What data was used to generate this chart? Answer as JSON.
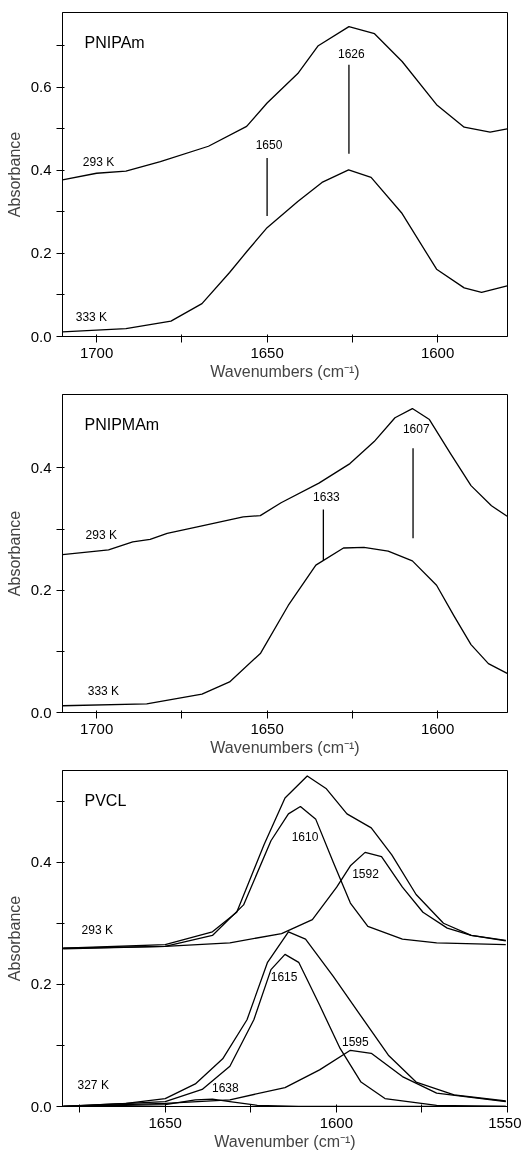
{
  "chart_data": [
    {
      "type": "line",
      "title": "PNIPAm",
      "xlabel": "Wavenumbers (cm⁻¹)",
      "ylabel": "Absorbance",
      "xlim": [
        1710,
        1579.5
      ],
      "ylim": [
        0,
        0.78
      ],
      "xticks": [
        1700,
        {
          "value": 1675,
          "label": null
        },
        1650,
        {
          "value": 1625,
          "label": null
        },
        1600
      ],
      "yticks": [
        {
          "value": 0,
          "label": "0.0"
        },
        {
          "value": 0.1,
          "label": null
        },
        {
          "value": 0.2,
          "label": "0.2"
        },
        {
          "value": 0.3,
          "label": null
        },
        {
          "value": 0.4,
          "label": "0.4"
        },
        {
          "value": 0.5,
          "label": null
        },
        {
          "value": 0.6,
          "label": "0.6"
        },
        {
          "value": 0.7,
          "label": null
        }
      ],
      "series": [
        {
          "color": "#000000",
          "x": [
            1710,
            1700,
            1691.4,
            1681.3,
            1667.2,
            1656,
            1650,
            1641,
            1635,
            1626,
            1618.5,
            1610.4,
            1600.3,
            1592.2,
            1584.6,
            1579.6
          ],
          "values": [
            0.377,
            0.393,
            0.398,
            0.421,
            0.458,
            0.506,
            0.562,
            0.633,
            0.7,
            0.746,
            0.729,
            0.662,
            0.558,
            0.504,
            0.492,
            0.5
          ]
        },
        {
          "color": "#000000",
          "x": [
            1710,
            1691.4,
            1678.2,
            1669.1,
            1661,
            1656,
            1650,
            1641,
            1633.9,
            1626.1,
            1619.5,
            1610.4,
            1600.3,
            1592.2,
            1587.1,
            1579.6
          ],
          "values": [
            0.011,
            0.019,
            0.037,
            0.079,
            0.154,
            0.204,
            0.262,
            0.325,
            0.371,
            0.401,
            0.383,
            0.296,
            0.162,
            0.117,
            0.106,
            0.122
          ]
        },
        {
          "color": "#000000",
          "x": [
            1650,
            1650
          ],
          "values": [
            0.29,
            0.43
          ]
        },
        {
          "color": "#000000",
          "x": [
            1626,
            1626
          ],
          "values": [
            0.44,
            0.654
          ]
        }
      ],
      "annotations": [
        "293 K",
        "333 K",
        "1650",
        "1626"
      ]
    },
    {
      "type": "line",
      "title": "PNIPMAm",
      "xlabel": "Wavenumbers (cm⁻¹)",
      "ylabel": "Absorbance",
      "xlim": [
        1710,
        1579.5
      ],
      "ylim": [
        0,
        0.52
      ],
      "xticks": [
        1700,
        {
          "value": 1675,
          "label": null
        },
        1650,
        {
          "value": 1625,
          "label": null
        },
        1600
      ],
      "yticks": [
        {
          "value": 0,
          "label": "0.0"
        },
        {
          "value": 0.1,
          "label": null
        },
        {
          "value": 0.2,
          "label": "0.2"
        },
        {
          "value": 0.3,
          "label": null
        },
        {
          "value": 0.4,
          "label": "0.4"
        }
      ],
      "series": [
        {
          "color": "#000000",
          "x": [
            1710,
            1700,
            1696.5,
            1689.4,
            1684.3,
            1679.3,
            1669.1,
            1657,
            1652,
            1645.9,
            1634.8,
            1625.7,
            1618.6,
            1612.5,
            1607.4,
            1602.4,
            1596.3,
            1590.2,
            1584.2,
            1579.6
          ],
          "values": [
            0.258,
            0.264,
            0.266,
            0.279,
            0.283,
            0.293,
            0.305,
            0.32,
            0.322,
            0.343,
            0.375,
            0.407,
            0.443,
            0.482,
            0.497,
            0.479,
            0.424,
            0.371,
            0.338,
            0.321
          ]
        },
        {
          "color": "#000000",
          "x": [
            1710,
            1685.3,
            1669.1,
            1661,
            1651.9,
            1643.8,
            1635.7,
            1627.6,
            1621.6,
            1614.5,
            1607.4,
            1600.3,
            1595.2,
            1590.2,
            1585.1,
            1579.6
          ],
          "values": [
            0.011,
            0.014,
            0.03,
            0.05,
            0.097,
            0.175,
            0.241,
            0.269,
            0.27,
            0.264,
            0.248,
            0.208,
            0.158,
            0.111,
            0.08,
            0.064
          ]
        },
        {
          "color": "#000000",
          "x": [
            1633.5,
            1633.5
          ],
          "values": [
            0.248,
            0.332
          ]
        },
        {
          "color": "#000000",
          "x": [
            1607.2,
            1607.2
          ],
          "values": [
            0.285,
            0.432
          ]
        }
      ],
      "annotations": [
        "293 K",
        "333 K",
        "1633",
        "1607"
      ]
    },
    {
      "type": "line",
      "title": "PVCL",
      "xlabel": "Wavenumber (cm⁻¹)",
      "ylabel": "Absorbance",
      "xlim": [
        1680,
        1550
      ],
      "ylim": [
        0,
        0.55
      ],
      "xticks": [
        {
          "value": 1675,
          "label": null
        },
        1650,
        {
          "value": 1625,
          "label": null
        },
        1600,
        {
          "value": 1575,
          "label": null
        },
        1550
      ],
      "yticks": [
        {
          "value": 0,
          "label": "0.0"
        },
        {
          "value": 0.1,
          "label": null
        },
        {
          "value": 0.2,
          "label": "0.2"
        },
        {
          "value": 0.3,
          "label": null
        },
        {
          "value": 0.4,
          "label": "0.4"
        },
        {
          "value": 0.5,
          "label": null
        }
      ],
      "series": [
        {
          "color": "#000000",
          "x": [
            1679.8,
            1650,
            1636.2,
            1629.1,
            1621.1,
            1615,
            1608.5,
            1602.9,
            1596.9,
            1589.8,
            1583.8,
            1576.7,
            1568.7,
            1560.6,
            1550.5
          ],
          "values": [
            0.259,
            0.265,
            0.286,
            0.318,
            0.429,
            0.505,
            0.541,
            0.52,
            0.479,
            0.456,
            0.412,
            0.347,
            0.3,
            0.28,
            0.272
          ]
        },
        {
          "color": "#000000",
          "x": [
            1679.8,
            1650,
            1636.2,
            1627.1,
            1619.1,
            1614,
            1610.5,
            1606,
            1600.9,
            1595.9,
            1590.8,
            1580.7,
            1570.7,
            1550.5
          ],
          "values": [
            0.258,
            0.262,
            0.28,
            0.33,
            0.435,
            0.479,
            0.491,
            0.47,
            0.4,
            0.333,
            0.295,
            0.274,
            0.268,
            0.265
          ]
        },
        {
          "color": "#000000",
          "x": [
            1679.8,
            1650,
            1631.1,
            1616,
            1607,
            1599.9,
            1595.9,
            1591.6,
            1586.8,
            1580.7,
            1574.7,
            1567.6,
            1560.6,
            1550.5
          ],
          "values": [
            0.259,
            0.262,
            0.268,
            0.283,
            0.306,
            0.359,
            0.394,
            0.416,
            0.409,
            0.359,
            0.318,
            0.292,
            0.28,
            0.271
          ]
        },
        {
          "color": "#000000",
          "x": [
            1679.8,
            1661.4,
            1650,
            1641.2,
            1633.2,
            1626.1,
            1620.1,
            1614,
            1609,
            1600.9,
            1592.8,
            1584.8,
            1576.7,
            1565.6,
            1550.5
          ],
          "values": [
            0.0,
            0.005,
            0.013,
            0.037,
            0.078,
            0.142,
            0.236,
            0.286,
            0.274,
            0.213,
            0.148,
            0.084,
            0.04,
            0.019,
            0.009
          ]
        },
        {
          "color": "#000000",
          "x": [
            1679.8,
            1650,
            1639.2,
            1631.1,
            1624.1,
            1619.1,
            1615,
            1611,
            1604.9,
            1598.9,
            1592.8,
            1585.8,
            1570.7,
            1550.5
          ],
          "values": [
            0.0,
            0.008,
            0.028,
            0.066,
            0.142,
            0.224,
            0.249,
            0.236,
            0.166,
            0.095,
            0.04,
            0.013,
            0.002,
            0.0
          ]
        },
        {
          "color": "#000000",
          "x": [
            1679.8,
            1650,
            1631.1,
            1615,
            1604.9,
            1595.9,
            1589.8,
            1580.7,
            1570.7,
            1550.5
          ],
          "values": [
            0.0,
            0.005,
            0.011,
            0.031,
            0.06,
            0.092,
            0.087,
            0.049,
            0.022,
            0.008
          ]
        },
        {
          "color": "#000000",
          "x": [
            1679.8,
            1650,
            1641.2,
            1636.2,
            1631.1,
            1623.1,
            1611,
            1550.5
          ],
          "values": [
            0.0,
            0.003,
            0.011,
            0.012,
            0.008,
            0.002,
            0.0,
            0.0
          ]
        }
      ],
      "annotations": [
        "293 K",
        "327 K",
        "1610",
        "1592",
        "1615",
        "1595",
        "1638"
      ]
    }
  ]
}
